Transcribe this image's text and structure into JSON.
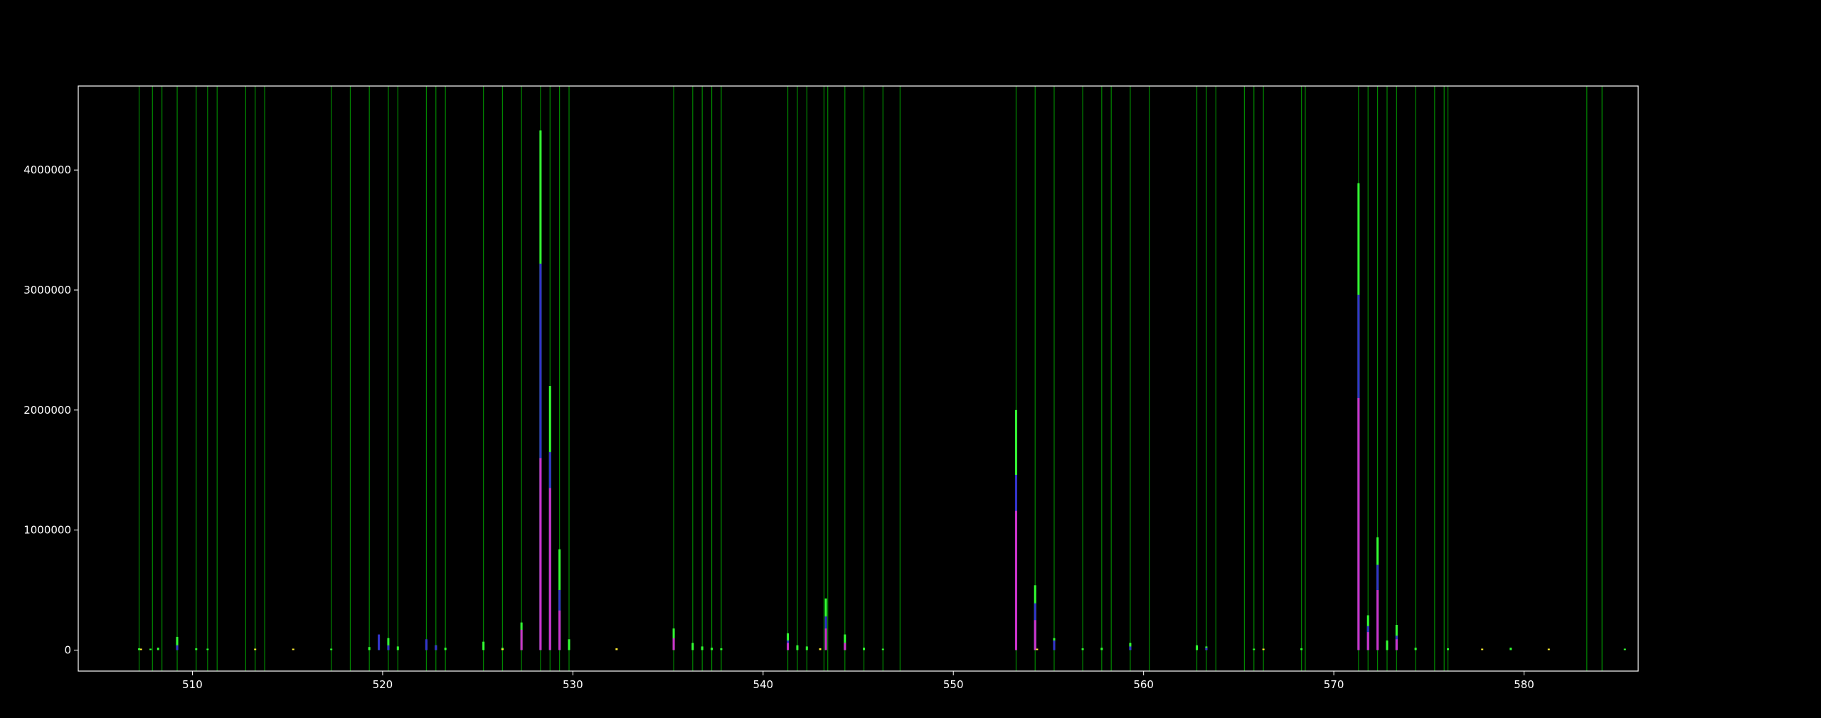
{
  "chart_data": {
    "type": "bar",
    "title": "",
    "xlabel": "",
    "ylabel": "",
    "xlim": [
      504,
      586
    ],
    "ylim": [
      -175000,
      4700000
    ],
    "grid": false,
    "x_ticks": [
      510,
      520,
      530,
      540,
      550,
      560,
      570,
      580
    ],
    "x_tick_labels": [
      "510",
      "520",
      "530",
      "540",
      "550",
      "560",
      "570",
      "580"
    ],
    "y_ticks": [
      0,
      1000000,
      2000000,
      3000000,
      4000000
    ],
    "y_tick_labels": [
      "0",
      "1000000",
      "2000000",
      "3000000",
      "4000000"
    ],
    "colors": {
      "background": "#000000",
      "axes_frame": "#ffffff",
      "marker_lines": "#00a000",
      "series_green": "#33ff33",
      "series_blue": "#3333cc",
      "series_magenta": "#cc33cc",
      "series_yellow": "#ffee33"
    },
    "marker_lines": [
      507.2,
      507.9,
      508.4,
      509.2,
      510.2,
      510.8,
      511.3,
      512.8,
      513.3,
      513.8,
      517.3,
      518.3,
      519.3,
      520.3,
      520.8,
      522.3,
      522.8,
      523.3,
      525.3,
      526.3,
      527.3,
      528.3,
      528.8,
      529.3,
      529.8,
      535.3,
      536.3,
      536.8,
      537.3,
      537.8,
      541.3,
      541.8,
      542.3,
      543.2,
      543.4,
      544.3,
      545.3,
      546.3,
      547.2,
      553.3,
      554.3,
      555.3,
      556.8,
      557.8,
      558.3,
      559.3,
      560.3,
      562.8,
      563.3,
      563.8,
      565.3,
      565.8,
      566.3,
      568.3,
      568.5,
      571.3,
      571.8,
      572.3,
      572.8,
      573.3,
      574.3,
      575.3,
      575.8,
      576.0,
      583.3,
      584.1
    ],
    "series": [
      {
        "color": "green",
        "points": [
          {
            "x": 507.2,
            "y": 15000
          },
          {
            "x": 507.8,
            "y": 10000
          },
          {
            "x": 508.2,
            "y": 20000
          },
          {
            "x": 509.2,
            "y": 110000
          },
          {
            "x": 510.2,
            "y": 15000
          },
          {
            "x": 510.8,
            "y": 12000
          },
          {
            "x": 517.3,
            "y": 10000
          },
          {
            "x": 519.3,
            "y": 25000
          },
          {
            "x": 519.8,
            "y": 120000
          },
          {
            "x": 520.3,
            "y": 100000
          },
          {
            "x": 520.8,
            "y": 30000
          },
          {
            "x": 522.3,
            "y": 80000
          },
          {
            "x": 522.8,
            "y": 40000
          },
          {
            "x": 523.3,
            "y": 20000
          },
          {
            "x": 525.3,
            "y": 70000
          },
          {
            "x": 526.3,
            "y": 20000
          },
          {
            "x": 527.3,
            "y": 230000
          },
          {
            "x": 528.3,
            "y": 4330000
          },
          {
            "x": 528.8,
            "y": 2200000
          },
          {
            "x": 529.3,
            "y": 840000
          },
          {
            "x": 529.8,
            "y": 90000
          },
          {
            "x": 535.3,
            "y": 180000
          },
          {
            "x": 536.3,
            "y": 60000
          },
          {
            "x": 536.8,
            "y": 30000
          },
          {
            "x": 537.3,
            "y": 20000
          },
          {
            "x": 537.8,
            "y": 15000
          },
          {
            "x": 541.3,
            "y": 140000
          },
          {
            "x": 541.8,
            "y": 40000
          },
          {
            "x": 542.3,
            "y": 30000
          },
          {
            "x": 543.3,
            "y": 430000
          },
          {
            "x": 544.3,
            "y": 130000
          },
          {
            "x": 545.3,
            "y": 20000
          },
          {
            "x": 546.3,
            "y": 10000
          },
          {
            "x": 553.3,
            "y": 2000000
          },
          {
            "x": 554.3,
            "y": 540000
          },
          {
            "x": 555.3,
            "y": 100000
          },
          {
            "x": 556.8,
            "y": 15000
          },
          {
            "x": 557.8,
            "y": 20000
          },
          {
            "x": 559.3,
            "y": 60000
          },
          {
            "x": 562.8,
            "y": 40000
          },
          {
            "x": 563.3,
            "y": 30000
          },
          {
            "x": 565.8,
            "y": 10000
          },
          {
            "x": 568.3,
            "y": 15000
          },
          {
            "x": 571.3,
            "y": 3890000
          },
          {
            "x": 571.8,
            "y": 290000
          },
          {
            "x": 572.3,
            "y": 940000
          },
          {
            "x": 572.8,
            "y": 80000
          },
          {
            "x": 573.3,
            "y": 210000
          },
          {
            "x": 574.3,
            "y": 20000
          },
          {
            "x": 576.0,
            "y": 15000
          },
          {
            "x": 579.3,
            "y": 20000
          },
          {
            "x": 585.3,
            "y": 10000
          }
        ]
      },
      {
        "color": "blue",
        "points": [
          {
            "x": 509.2,
            "y": 40000
          },
          {
            "x": 519.8,
            "y": 130000
          },
          {
            "x": 520.3,
            "y": 40000
          },
          {
            "x": 522.3,
            "y": 90000
          },
          {
            "x": 522.8,
            "y": 40000
          },
          {
            "x": 528.3,
            "y": 3220000
          },
          {
            "x": 528.8,
            "y": 1650000
          },
          {
            "x": 529.3,
            "y": 500000
          },
          {
            "x": 541.3,
            "y": 80000
          },
          {
            "x": 543.3,
            "y": 280000
          },
          {
            "x": 553.3,
            "y": 1460000
          },
          {
            "x": 554.3,
            "y": 390000
          },
          {
            "x": 555.3,
            "y": 80000
          },
          {
            "x": 559.3,
            "y": 30000
          },
          {
            "x": 563.3,
            "y": 20000
          },
          {
            "x": 571.3,
            "y": 2960000
          },
          {
            "x": 571.8,
            "y": 200000
          },
          {
            "x": 572.3,
            "y": 710000
          },
          {
            "x": 573.3,
            "y": 120000
          }
        ]
      },
      {
        "color": "magenta",
        "points": [
          {
            "x": 527.3,
            "y": 170000
          },
          {
            "x": 528.3,
            "y": 1600000
          },
          {
            "x": 528.8,
            "y": 1350000
          },
          {
            "x": 529.3,
            "y": 330000
          },
          {
            "x": 535.3,
            "y": 100000
          },
          {
            "x": 541.3,
            "y": 60000
          },
          {
            "x": 543.3,
            "y": 180000
          },
          {
            "x": 544.3,
            "y": 60000
          },
          {
            "x": 553.3,
            "y": 1160000
          },
          {
            "x": 554.3,
            "y": 250000
          },
          {
            "x": 571.3,
            "y": 2100000
          },
          {
            "x": 571.8,
            "y": 150000
          },
          {
            "x": 572.3,
            "y": 500000
          },
          {
            "x": 573.3,
            "y": 90000
          }
        ]
      },
      {
        "color": "yellow",
        "points": [
          {
            "x": 507.3,
            "y": 8000
          },
          {
            "x": 513.3,
            "y": 8000
          },
          {
            "x": 515.3,
            "y": 6000
          },
          {
            "x": 526.3,
            "y": 10000
          },
          {
            "x": 532.3,
            "y": 15000
          },
          {
            "x": 543.0,
            "y": 15000
          },
          {
            "x": 554.4,
            "y": 10000
          },
          {
            "x": 566.3,
            "y": 8000
          },
          {
            "x": 577.8,
            "y": 6000
          },
          {
            "x": 581.3,
            "y": 6000
          }
        ]
      }
    ]
  }
}
